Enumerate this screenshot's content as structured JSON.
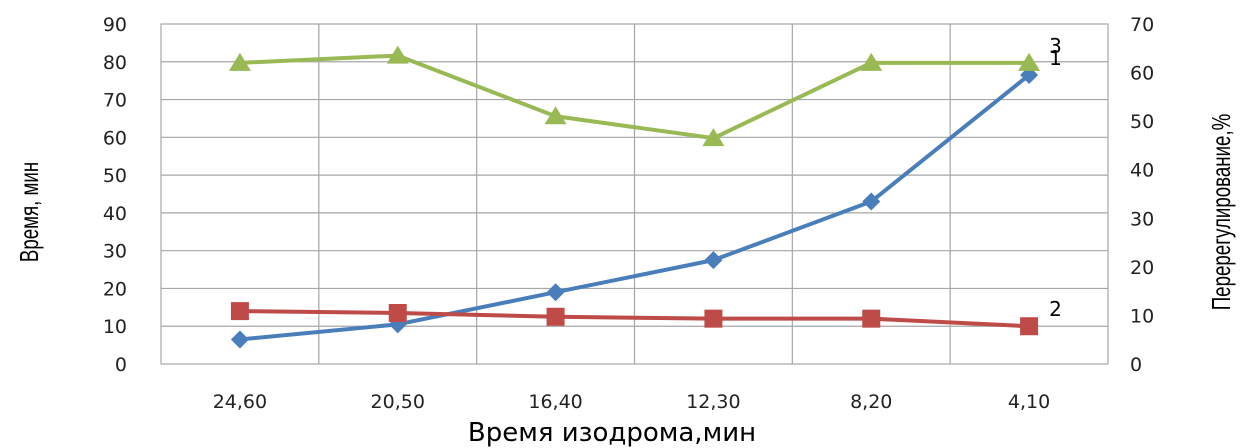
{
  "chart_data": {
    "type": "line",
    "xlabel": "Время изодрома,мин",
    "ylabel_left": "Время, мин",
    "ylabel_right": "Перерегулирование,%",
    "categories": [
      "24,60",
      "20,50",
      "16,40",
      "12,30",
      "8,20",
      "4,10"
    ],
    "ylim_left": [
      0,
      90
    ],
    "yticks_left": [
      "0",
      "10",
      "20",
      "30",
      "40",
      "50",
      "60",
      "70",
      "80",
      "90"
    ],
    "ylim_right": [
      0,
      70
    ],
    "yticks_right": [
      "0",
      "10",
      "20",
      "30",
      "40",
      "50",
      "60",
      "70"
    ],
    "grid": true,
    "series": [
      {
        "label": "1",
        "axis": "left",
        "marker": "diamond",
        "color": "#4a7ebb",
        "values": [
          6.5,
          10.5,
          19,
          27.5,
          43,
          76.5
        ]
      },
      {
        "label": "2",
        "axis": "left",
        "marker": "square",
        "color": "#be4b48",
        "values": [
          14,
          13.5,
          12.5,
          12,
          12,
          10
        ]
      },
      {
        "label": "3",
        "axis": "right",
        "marker": "triangle",
        "color": "#98b954",
        "values": [
          62,
          63.5,
          51,
          46.5,
          62,
          62
        ]
      }
    ]
  }
}
